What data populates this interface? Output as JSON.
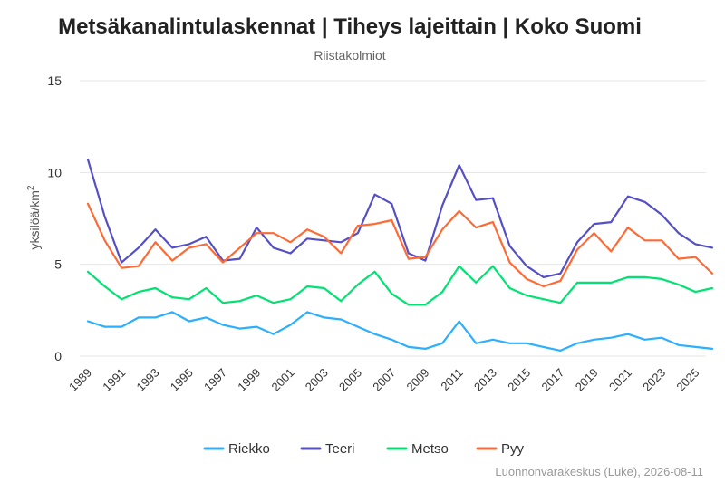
{
  "chart_data": {
    "type": "line",
    "title": "Metsäkanalintulaskennat | Tiheys lajeittain | Koko Suomi",
    "subtitle": "Riistakolmiot",
    "ylabel": "yksilöä/km",
    "ylabel_sup": "2",
    "ylim": [
      0,
      15
    ],
    "yticks": [
      0,
      5,
      10,
      15
    ],
    "x": [
      1989,
      1990,
      1991,
      1992,
      1993,
      1994,
      1995,
      1996,
      1997,
      1998,
      1999,
      2000,
      2001,
      2002,
      2003,
      2004,
      2005,
      2006,
      2007,
      2008,
      2009,
      2010,
      2011,
      2012,
      2013,
      2014,
      2015,
      2016,
      2017,
      2018,
      2019,
      2020,
      2021,
      2022,
      2023,
      2024,
      2025,
      2026
    ],
    "xticks": [
      1989,
      1991,
      1993,
      1995,
      1997,
      1999,
      2001,
      2003,
      2005,
      2007,
      2009,
      2011,
      2013,
      2015,
      2017,
      2019,
      2021,
      2023,
      2025
    ],
    "grid": true,
    "legend_position": "bottom",
    "series": [
      {
        "name": "Riekko",
        "color": "#2caffe",
        "values": [
          1.9,
          1.6,
          1.6,
          2.1,
          2.1,
          2.4,
          1.9,
          2.1,
          1.7,
          1.5,
          1.6,
          1.2,
          1.7,
          2.4,
          2.1,
          2.0,
          1.6,
          1.2,
          0.9,
          0.5,
          0.4,
          0.7,
          1.9,
          0.7,
          0.9,
          0.7,
          0.7,
          0.5,
          0.3,
          0.7,
          0.9,
          1.0,
          1.2,
          0.9,
          1.0,
          0.6,
          0.5,
          0.4
        ]
      },
      {
        "name": "Teeri",
        "color": "#544fc5",
        "values": [
          10.7,
          7.6,
          5.1,
          5.9,
          6.9,
          5.9,
          6.1,
          6.5,
          5.2,
          5.3,
          7.0,
          5.9,
          5.6,
          6.4,
          6.3,
          6.2,
          6.7,
          8.8,
          8.3,
          5.6,
          5.2,
          8.2,
          10.4,
          8.5,
          8.6,
          6.0,
          4.9,
          4.3,
          4.5,
          6.2,
          7.2,
          7.3,
          8.7,
          8.4,
          7.7,
          6.7,
          6.1,
          5.9
        ]
      },
      {
        "name": "Metso",
        "color": "#00e272",
        "values": [
          4.6,
          3.8,
          3.1,
          3.5,
          3.7,
          3.2,
          3.1,
          3.7,
          2.9,
          3.0,
          3.3,
          2.9,
          3.1,
          3.8,
          3.7,
          3.0,
          3.9,
          4.6,
          3.4,
          2.8,
          2.8,
          3.5,
          4.9,
          4.0,
          4.9,
          3.7,
          3.3,
          3.1,
          2.9,
          4.0,
          4.0,
          4.0,
          4.3,
          4.3,
          4.2,
          3.9,
          3.5,
          3.7
        ]
      },
      {
        "name": "Pyy",
        "color": "#fe6a35",
        "values": [
          8.3,
          6.3,
          4.8,
          4.9,
          6.2,
          5.2,
          5.9,
          6.1,
          5.1,
          5.9,
          6.7,
          6.7,
          6.2,
          6.9,
          6.5,
          5.6,
          7.1,
          7.2,
          7.4,
          5.3,
          5.4,
          6.9,
          7.9,
          7.0,
          7.3,
          5.1,
          4.2,
          3.8,
          4.1,
          5.8,
          6.7,
          5.7,
          7.0,
          6.3,
          6.3,
          5.3,
          5.4,
          4.5
        ]
      }
    ],
    "credit": "Luonnonvarakeskus (Luke), 2026-08-11"
  }
}
